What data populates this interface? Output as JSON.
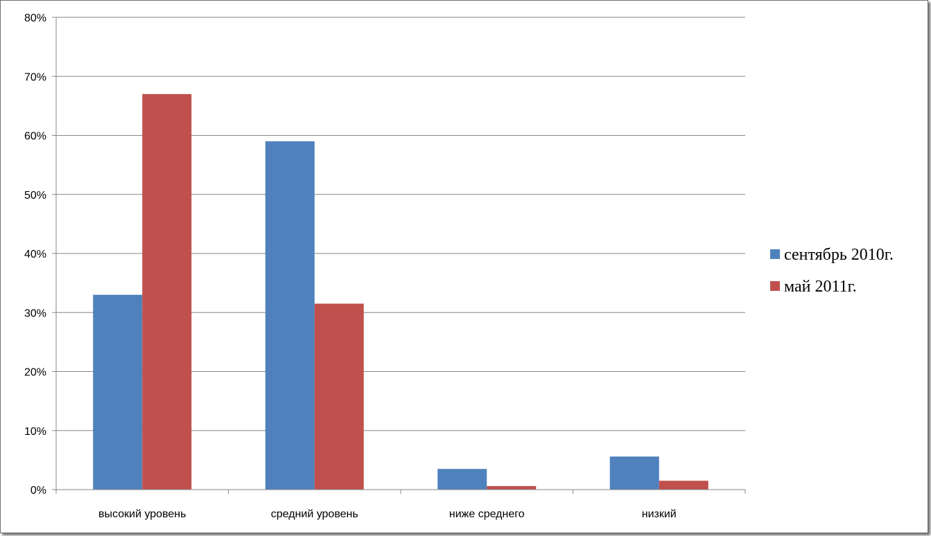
{
  "chart_data": {
    "type": "bar",
    "title": "",
    "xlabel": "",
    "ylabel": "",
    "categories": [
      "высокий уровень",
      "средний уровень",
      "ниже среднего",
      "низкий"
    ],
    "series": [
      {
        "name": "сентябрь 2010г.",
        "values": [
          33,
          59,
          3.5,
          5.6
        ],
        "color": "#4f81bd"
      },
      {
        "name": "май 2011г.",
        "values": [
          67,
          31.5,
          0.6,
          1.5
        ],
        "color": "#c0504d"
      }
    ],
    "ylim": [
      0,
      80
    ],
    "yticks": [
      0,
      10,
      20,
      30,
      40,
      50,
      60,
      70,
      80
    ],
    "ytick_labels": [
      "0%",
      "10%",
      "20%",
      "30%",
      "40%",
      "50%",
      "60%",
      "70%",
      "80%"
    ],
    "grid": true,
    "legend_position": "right"
  }
}
